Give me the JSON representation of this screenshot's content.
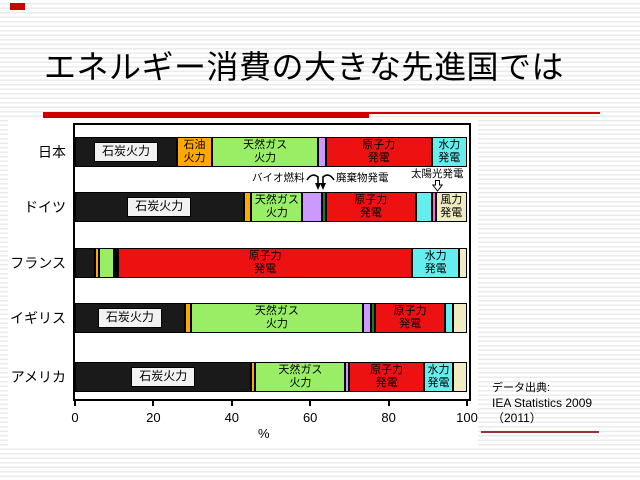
{
  "slide": {
    "title": "エネルギー消費の大きな先進国では",
    "source": {
      "line1": "データ出典:",
      "line2": "IEA Statistics 2009",
      "line3": "（2011）"
    }
  },
  "colors": {
    "accent_red": "#CC0000",
    "source_rule_maroon": "#993333",
    "plot_border": "#000000"
  },
  "chart_data": {
    "type": "bar",
    "stacked": true,
    "orientation": "horizontal",
    "title": "",
    "xlabel": "%",
    "xlim": [
      0,
      100
    ],
    "xticks": [
      0,
      20,
      40,
      60,
      80,
      100
    ],
    "grid": false,
    "legend": "none (labels drawn inside segments)",
    "categories": [
      "日本",
      "ドイツ",
      "フランス",
      "イギリス",
      "アメリカ"
    ],
    "category_keys": [
      "japan",
      "germany",
      "france",
      "uk",
      "usa"
    ],
    "series": [
      {
        "key": "coal",
        "name": "石炭火力",
        "color": "#1a1a1a",
        "label_lines": [
          "石炭火力"
        ],
        "boxed_label": true,
        "min_label_pct": 20,
        "values": [
          26,
          43,
          5,
          28,
          45
        ]
      },
      {
        "key": "oil",
        "name": "石油火力",
        "color": "#FFA800",
        "label_lines": [
          "石油",
          "火力"
        ],
        "boxed_label": false,
        "min_label_pct": 8,
        "values": [
          9,
          2,
          1,
          1.5,
          1
        ]
      },
      {
        "key": "gas",
        "name": "天然ガス火力",
        "color": "#99EE66",
        "label_lines": [
          "天然ガス",
          "火力"
        ],
        "boxed_label": false,
        "min_label_pct": 13,
        "values": [
          27,
          13,
          4,
          44,
          23
        ]
      },
      {
        "key": "biofuel",
        "name": "バイオ燃料",
        "color": "#CC99FF",
        "label_lines": [],
        "boxed_label": false,
        "min_label_pct": 999,
        "values": [
          2,
          5,
          0.5,
          2,
          1
        ]
      },
      {
        "key": "waste",
        "name": "廃棄物発電",
        "color": "#1E7B1E",
        "label_lines": [],
        "boxed_label": false,
        "min_label_pct": 999,
        "values": [
          0,
          1,
          0.5,
          1,
          0
        ]
      },
      {
        "key": "nuclear",
        "name": "原子力発電",
        "color": "#EE1111",
        "label_lines": [
          "原子力",
          "発電"
        ],
        "boxed_label": false,
        "min_label_pct": 17,
        "values": [
          27,
          23,
          75,
          18,
          19
        ]
      },
      {
        "key": "hydro",
        "name": "水力発電",
        "color": "#66EEEE",
        "label_lines": [
          "水力",
          "発電"
        ],
        "boxed_label": false,
        "min_label_pct": 7,
        "values": [
          9,
          4,
          12,
          2,
          7.5
        ]
      },
      {
        "key": "solar",
        "name": "太陽光発電",
        "color": "#FF66CC",
        "label_lines": [],
        "boxed_label": false,
        "min_label_pct": 999,
        "values": [
          0,
          1,
          0,
          0,
          0
        ]
      },
      {
        "key": "wind",
        "name": "風力発電",
        "color": "#F0ECC2",
        "label_lines": [
          "風力",
          "発電"
        ],
        "boxed_label": false,
        "min_label_pct": 8,
        "values": [
          0,
          8,
          2,
          3.5,
          3.5
        ]
      }
    ],
    "annotations": [
      {
        "key": "biofuel",
        "text": "バイオ燃料",
        "points_to": "ドイツ バイオ燃料 segment"
      },
      {
        "key": "waste",
        "text": "廃棄物発電",
        "points_to": "ドイツ 廃棄物発電 segment"
      },
      {
        "key": "solar",
        "text": "太陽光発電",
        "points_to": "ドイツ 太陽光発電 segment"
      }
    ]
  }
}
